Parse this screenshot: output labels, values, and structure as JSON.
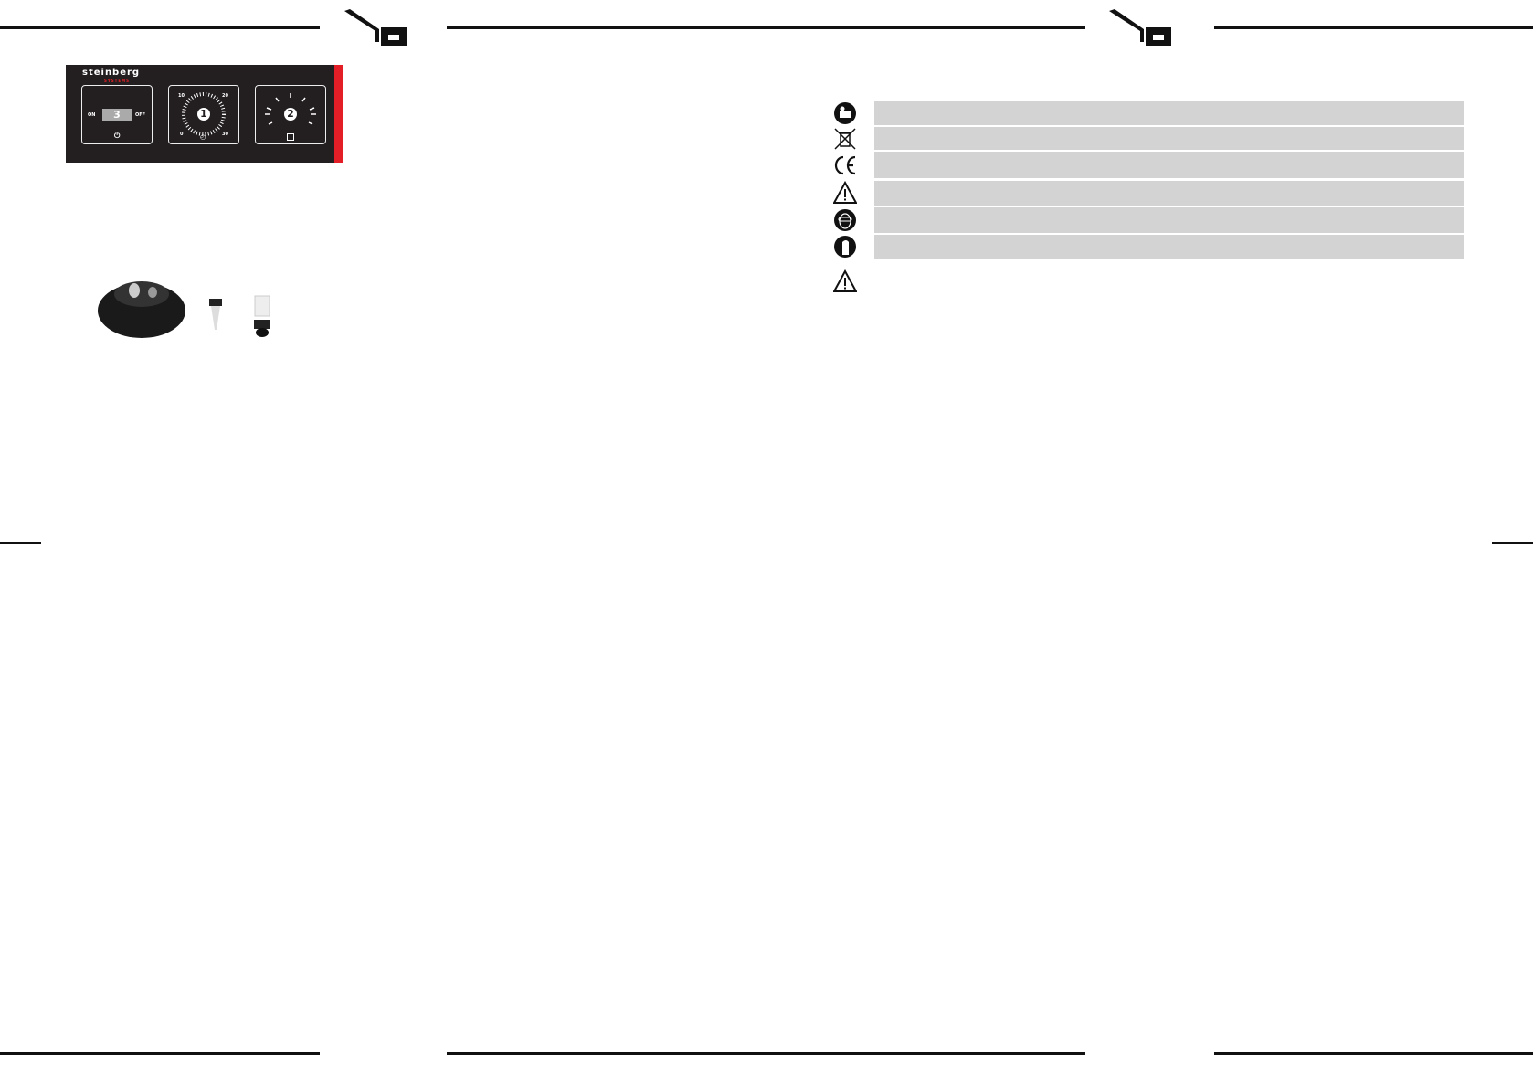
{
  "control_panel": {
    "brand": "steinberg",
    "brand_sub": "SYSTEMS",
    "switch": {
      "on": "ON",
      "off": "OFF",
      "number": "3"
    },
    "dial_time": {
      "number": "1",
      "ticks": [
        "10",
        "20",
        "0",
        "30"
      ]
    },
    "dial_speed": {
      "number": "2"
    },
    "accent_color": "#e41e26"
  },
  "symbols": [
    "read-manual-icon",
    "weee-bin-icon",
    "ce-mark-icon",
    "warning-icon",
    "eye-protection-icon",
    "gloves-icon"
  ],
  "note_icon": "warning-icon"
}
